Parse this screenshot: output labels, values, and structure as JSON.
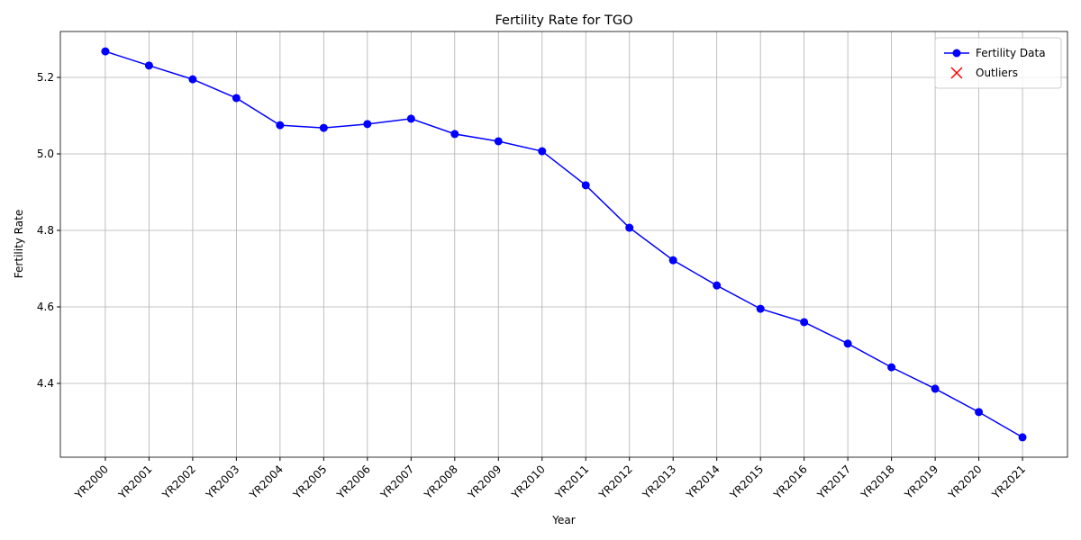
{
  "chart_data": {
    "type": "line",
    "title": "Fertility Rate for TGO",
    "x_label": "Year",
    "y_label": "Fertility Rate",
    "categories": [
      "YR2000",
      "YR2001",
      "YR2002",
      "YR2003",
      "YR2004",
      "YR2005",
      "YR2006",
      "YR2007",
      "YR2008",
      "YR2009",
      "YR2010",
      "YR2011",
      "YR2012",
      "YR2013",
      "YR2014",
      "YR2015",
      "YR2016",
      "YR2017",
      "YR2018",
      "YR2019",
      "YR2020",
      "YR2021"
    ],
    "series": [
      {
        "name": "Fertility Data",
        "color": "blue",
        "marker": "o",
        "values": [
          5.268,
          5.231,
          5.195,
          5.146,
          5.075,
          5.068,
          5.078,
          5.092,
          5.052,
          5.033,
          5.007,
          4.918,
          4.807,
          4.722,
          4.656,
          4.595,
          4.56,
          4.504,
          4.442,
          4.386,
          4.325,
          4.259
        ]
      },
      {
        "name": "Outliers",
        "color": "red",
        "marker": "x",
        "values": [
          null,
          null,
          null,
          null,
          null,
          null,
          null,
          null,
          null,
          null,
          null,
          null,
          null,
          null,
          null,
          null,
          null,
          null,
          null,
          null,
          null,
          null
        ]
      }
    ],
    "ylim": [
      4.207,
      5.32
    ],
    "yticks": [
      4.4,
      4.6,
      4.8,
      {
        "value": 5,
        "label": "5.0"
      },
      5.2
    ],
    "grid": true,
    "legend": "upper right"
  }
}
